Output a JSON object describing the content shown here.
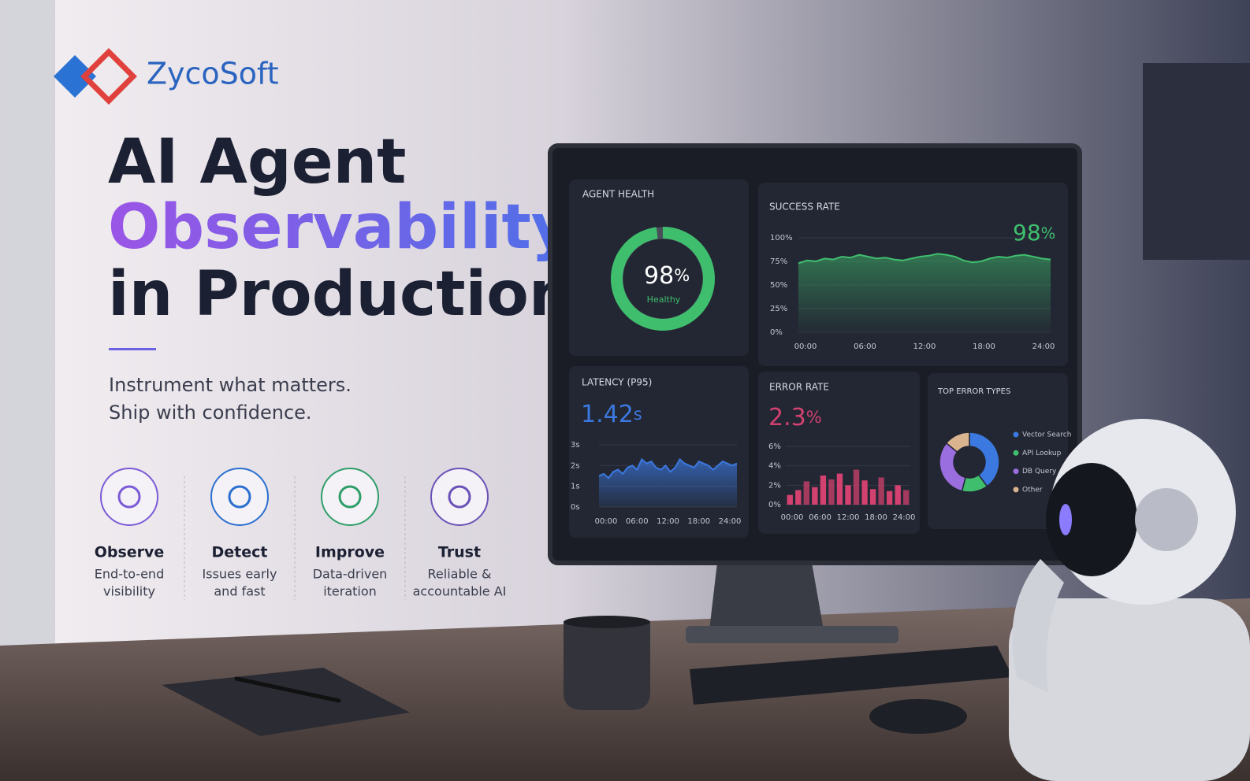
{
  "brand": "ZycoSoft",
  "headline": {
    "line1": "AI Agent",
    "line2": "Observability",
    "line3": "in Production"
  },
  "tagline": [
    "Instrument what matters.",
    "Ship with confidence."
  ],
  "features": [
    {
      "title": "Observe",
      "text": [
        "End-to-end",
        "visibility"
      ]
    },
    {
      "title": "Detect",
      "text": [
        "Issues early",
        "and fast"
      ]
    },
    {
      "title": "Improve",
      "text": [
        "Data-driven",
        "iteration"
      ]
    },
    {
      "title": "Trust",
      "text": [
        "Reliable &",
        "accountable AI"
      ]
    }
  ],
  "dashboard": {
    "agent_health": {
      "title": "AGENT HEALTH",
      "value": 98,
      "unit": "%",
      "status": "Healthy",
      "color": "#3fbf6e"
    },
    "success_rate": {
      "type": "line",
      "title": "SUCCESS RATE",
      "value": 98,
      "unit": "%",
      "color": "#3fbf6e",
      "ylim": [
        0,
        100
      ],
      "yticks": [
        {
          "value": 0,
          "label": "0%"
        },
        {
          "value": 25,
          "label": "25%"
        },
        {
          "value": 50,
          "label": "50%"
        },
        {
          "value": 75,
          "label": "75%"
        },
        {
          "value": 100,
          "label": "100%"
        }
      ],
      "xticks": [
        "00:00",
        "06:00",
        "12:00",
        "18:00",
        "24:00"
      ],
      "values": [
        73,
        76,
        75,
        78,
        77,
        80,
        79,
        82,
        80,
        78,
        79,
        77,
        76,
        78,
        80,
        81,
        83,
        82,
        80,
        76,
        74,
        75,
        78,
        80,
        79,
        81,
        82,
        80,
        78,
        77
      ]
    },
    "latency": {
      "type": "line",
      "title": "LATENCY (P95)",
      "value": 1.42,
      "unit": "s",
      "color": "#3b78e0",
      "ylim": [
        0,
        3
      ],
      "yticks": [
        {
          "value": 0,
          "label": "0s"
        },
        {
          "value": 1,
          "label": "1s"
        },
        {
          "value": 2,
          "label": "2s"
        },
        {
          "value": 3,
          "label": "3s"
        }
      ],
      "xticks": [
        "00:00",
        "06:00",
        "12:00",
        "18:00",
        "24:00"
      ],
      "values": [
        1.5,
        1.6,
        1.4,
        1.7,
        1.8,
        1.6,
        1.9,
        2.0,
        1.8,
        2.3,
        2.1,
        2.2,
        1.9,
        1.8,
        2.0,
        1.7,
        1.9,
        2.3,
        2.1,
        2.0,
        1.9,
        2.2,
        2.1,
        2.0,
        1.8,
        2.0,
        2.2,
        2.1,
        2.0,
        2.1
      ]
    },
    "error_rate": {
      "type": "bar",
      "title": "ERROR RATE",
      "value": 2.3,
      "unit": "%",
      "color": "#d2416f",
      "ylim": [
        0,
        6
      ],
      "yticks": [
        {
          "value": 0,
          "label": "0%"
        },
        {
          "value": 2,
          "label": "2%"
        },
        {
          "value": 4,
          "label": "4%"
        },
        {
          "value": 6,
          "label": "6%"
        }
      ],
      "xticks": [
        "00:00",
        "06:00",
        "12:00",
        "18:00",
        "24:00"
      ],
      "values": [
        1.0,
        1.5,
        2.4,
        1.8,
        3.0,
        2.6,
        3.2,
        2.0,
        3.6,
        2.5,
        1.6,
        2.8,
        1.4,
        2.0,
        1.5
      ]
    },
    "top_error_types": {
      "type": "pie",
      "title": "TOP ERROR TYPES",
      "categories": [
        "Vector Search",
        "API Lookup",
        "DB Query",
        "Other"
      ],
      "values": [
        40,
        14,
        32,
        14
      ],
      "colors": [
        "#3b78e0",
        "#3fbf6e",
        "#9b6ee0",
        "#d9b48f"
      ]
    }
  }
}
